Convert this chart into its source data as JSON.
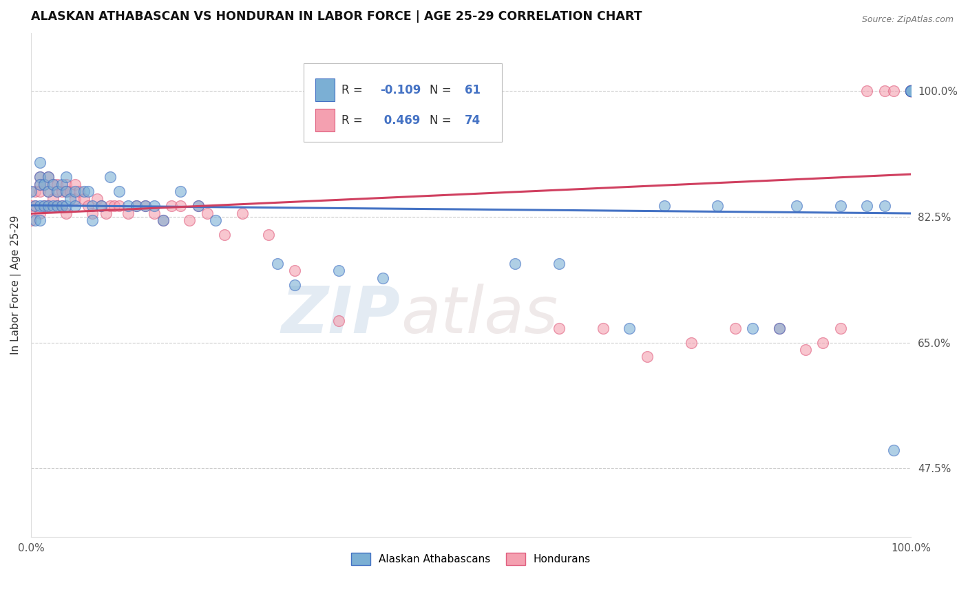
{
  "title": "ALASKAN ATHABASCAN VS HONDURAN IN LABOR FORCE | AGE 25-29 CORRELATION CHART",
  "source_text": "Source: ZipAtlas.com",
  "ylabel": "In Labor Force | Age 25-29",
  "xlim": [
    0.0,
    1.0
  ],
  "ylim": [
    0.38,
    1.08
  ],
  "yticks": [
    0.475,
    0.65,
    0.825,
    1.0
  ],
  "ytick_labels": [
    "47.5%",
    "65.0%",
    "82.5%",
    "100.0%"
  ],
  "blue_color": "#7BAFD4",
  "pink_color": "#F4A0B0",
  "blue_edge_color": "#4472C4",
  "pink_edge_color": "#E06080",
  "blue_line_color": "#4472C4",
  "pink_line_color": "#D04060",
  "watermark_zip": "ZIP",
  "watermark_atlas": "atlas",
  "legend_label_blue": "Alaskan Athabascans",
  "legend_label_pink": "Hondurans",
  "blue_r_val": "-0.109",
  "blue_n_val": "61",
  "pink_r_val": "0.469",
  "pink_n_val": "74",
  "blue_scatter_x": [
    0.0,
    0.005,
    0.005,
    0.01,
    0.01,
    0.01,
    0.01,
    0.01,
    0.015,
    0.015,
    0.02,
    0.02,
    0.02,
    0.025,
    0.025,
    0.03,
    0.03,
    0.035,
    0.035,
    0.04,
    0.04,
    0.04,
    0.045,
    0.05,
    0.05,
    0.06,
    0.065,
    0.07,
    0.07,
    0.08,
    0.09,
    0.1,
    0.11,
    0.12,
    0.13,
    0.14,
    0.15,
    0.17,
    0.19,
    0.21,
    0.28,
    0.3,
    0.35,
    0.4,
    0.55,
    0.6,
    0.68,
    0.72,
    0.78,
    0.82,
    0.85,
    0.87,
    0.92,
    0.95,
    0.97,
    0.98,
    1.0,
    1.0,
    1.0,
    1.0,
    1.0
  ],
  "blue_scatter_y": [
    0.86,
    0.84,
    0.82,
    0.9,
    0.88,
    0.87,
    0.84,
    0.82,
    0.87,
    0.84,
    0.88,
    0.86,
    0.84,
    0.87,
    0.84,
    0.86,
    0.84,
    0.87,
    0.84,
    0.88,
    0.86,
    0.84,
    0.85,
    0.86,
    0.84,
    0.86,
    0.86,
    0.84,
    0.82,
    0.84,
    0.88,
    0.86,
    0.84,
    0.84,
    0.84,
    0.84,
    0.82,
    0.86,
    0.84,
    0.82,
    0.76,
    0.73,
    0.75,
    0.74,
    0.76,
    0.76,
    0.67,
    0.84,
    0.84,
    0.67,
    0.67,
    0.84,
    0.84,
    0.84,
    0.84,
    0.5,
    1.0,
    1.0,
    1.0,
    1.0,
    1.0
  ],
  "pink_scatter_x": [
    0.0,
    0.0,
    0.005,
    0.005,
    0.01,
    0.01,
    0.01,
    0.01,
    0.015,
    0.015,
    0.02,
    0.02,
    0.02,
    0.025,
    0.025,
    0.03,
    0.03,
    0.03,
    0.035,
    0.035,
    0.04,
    0.04,
    0.04,
    0.045,
    0.05,
    0.05,
    0.055,
    0.06,
    0.065,
    0.07,
    0.075,
    0.08,
    0.085,
    0.09,
    0.095,
    0.1,
    0.11,
    0.12,
    0.13,
    0.14,
    0.15,
    0.16,
    0.17,
    0.18,
    0.19,
    0.2,
    0.22,
    0.24,
    0.27,
    0.3,
    0.35,
    0.6,
    0.65,
    0.7,
    0.75,
    0.8,
    0.85,
    0.88,
    0.9,
    0.92,
    0.95,
    0.97,
    0.98,
    1.0,
    1.0,
    1.0,
    1.0,
    1.0,
    1.0,
    1.0,
    1.0,
    1.0,
    1.0,
    1.0
  ],
  "pink_scatter_y": [
    0.84,
    0.82,
    0.86,
    0.84,
    0.88,
    0.87,
    0.86,
    0.83,
    0.87,
    0.84,
    0.88,
    0.86,
    0.84,
    0.87,
    0.85,
    0.87,
    0.86,
    0.84,
    0.86,
    0.84,
    0.87,
    0.86,
    0.83,
    0.86,
    0.87,
    0.85,
    0.86,
    0.85,
    0.84,
    0.83,
    0.85,
    0.84,
    0.83,
    0.84,
    0.84,
    0.84,
    0.83,
    0.84,
    0.84,
    0.83,
    0.82,
    0.84,
    0.84,
    0.82,
    0.84,
    0.83,
    0.8,
    0.83,
    0.8,
    0.75,
    0.68,
    0.67,
    0.67,
    0.63,
    0.65,
    0.67,
    0.67,
    0.64,
    0.65,
    0.67,
    1.0,
    1.0,
    1.0,
    1.0,
    1.0,
    1.0,
    1.0,
    1.0,
    1.0,
    1.0,
    1.0,
    1.0,
    1.0,
    1.0
  ]
}
